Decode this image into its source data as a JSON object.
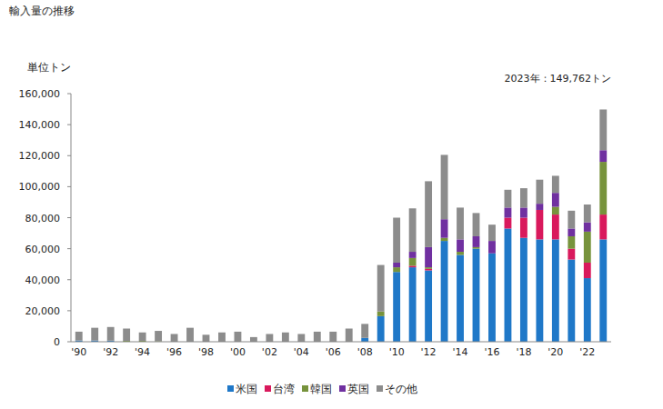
{
  "chart_data": {
    "type": "bar",
    "title": "輸入量の推移",
    "y_label": "単位トン",
    "annotation": "2023年：149,762トン",
    "stacked": true,
    "grid": false,
    "legend": "bottom",
    "categories": [
      "'90",
      null,
      "'92",
      null,
      "'94",
      null,
      "'96",
      null,
      "'98",
      null,
      "'00",
      null,
      "'02",
      null,
      "'04",
      null,
      "'06",
      null,
      "'08",
      null,
      "'10",
      null,
      "'12",
      null,
      "'14",
      null,
      "'16",
      null,
      "'18",
      null,
      "'20",
      null,
      "'22",
      null
    ],
    "ylim": [
      0,
      160000
    ],
    "yticks": [
      0,
      {
        "value": 20000,
        "label": "20,000"
      },
      {
        "value": 40000,
        "label": "40,000"
      },
      {
        "value": 60000,
        "label": "60,000"
      },
      {
        "value": 80000,
        "label": "80,000"
      },
      {
        "value": 100000,
        "label": "100,000"
      },
      {
        "value": 120000,
        "label": "120,000"
      },
      {
        "value": 140000,
        "label": "140,000"
      },
      {
        "value": 160000,
        "label": "160,000"
      }
    ],
    "series": [
      {
        "name": "米国",
        "color": "#1f78c8",
        "values": [
          800,
          800,
          700,
          0,
          0,
          0,
          0,
          0,
          0,
          0,
          0,
          0,
          0,
          0,
          0,
          0,
          0,
          0,
          2500,
          16500,
          45000,
          48000,
          46000,
          65000,
          56000,
          60000,
          57000,
          73000,
          67000,
          66000,
          66000,
          53000,
          41000,
          66000
        ]
      },
      {
        "name": "台湾",
        "color": "#d9195c",
        "values": [
          0,
          0,
          0,
          0,
          0,
          0,
          0,
          0,
          0,
          0,
          0,
          0,
          0,
          0,
          0,
          0,
          0,
          0,
          0,
          0,
          0,
          1000,
          1000,
          0,
          0,
          0,
          0,
          7000,
          13000,
          19000,
          16000,
          7000,
          10000,
          16000
        ]
      },
      {
        "name": "韓国",
        "color": "#77933c",
        "values": [
          0,
          0,
          0,
          600,
          600,
          300,
          0,
          0,
          0,
          0,
          0,
          0,
          0,
          0,
          0,
          0,
          0,
          0,
          0,
          3000,
          3000,
          5000,
          1000,
          2000,
          2000,
          1000,
          0,
          0,
          0,
          0,
          5000,
          8000,
          20000,
          34000
        ]
      },
      {
        "name": "英国",
        "color": "#7030a0",
        "values": [
          0,
          0,
          0,
          0,
          0,
          0,
          0,
          0,
          0,
          0,
          0,
          0,
          0,
          0,
          0,
          0,
          0,
          0,
          0,
          0,
          3000,
          4000,
          13000,
          12000,
          8000,
          7000,
          8000,
          6500,
          6500,
          4000,
          9000,
          5000,
          6000,
          7500
        ]
      },
      {
        "name": "その他",
        "color": "#8c8c8c",
        "values": [
          5700,
          8200,
          8800,
          7900,
          5400,
          6700,
          5000,
          9000,
          4500,
          6000,
          6500,
          3000,
          5000,
          6000,
          5000,
          6500,
          6500,
          8500,
          9000,
          30000,
          29000,
          28000,
          42500,
          41500,
          20500,
          15000,
          10500,
          11500,
          12500,
          15500,
          11000,
          11500,
          11500,
          26262
        ]
      }
    ]
  }
}
